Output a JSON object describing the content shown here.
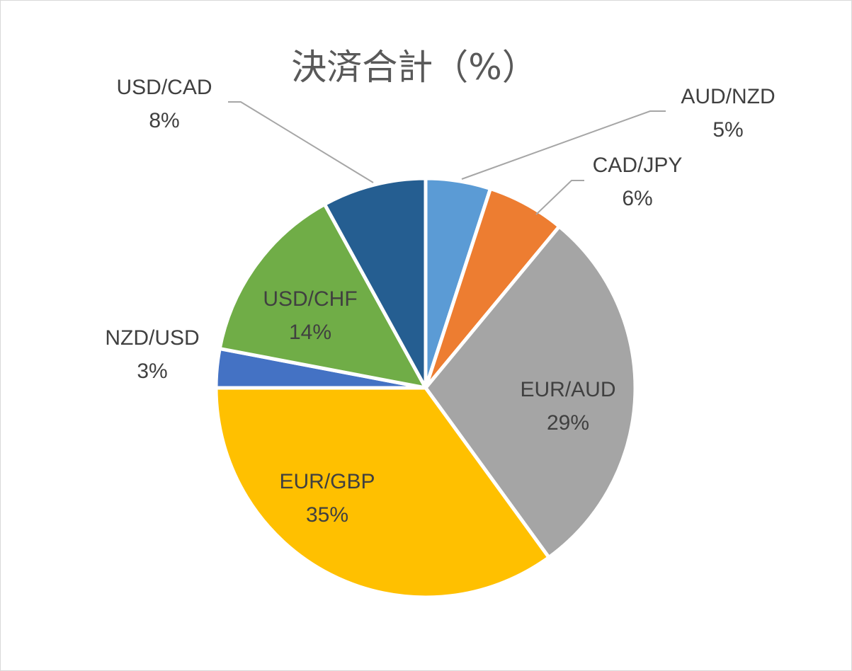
{
  "chart_data": {
    "type": "pie",
    "title": "決済合計（%）",
    "categories": [
      "AUD/NZD",
      "CAD/JPY",
      "EUR/AUD",
      "EUR/GBP",
      "NZD/USD",
      "USD/CHF",
      "USD/CAD"
    ],
    "values": [
      5,
      6,
      29,
      35,
      3,
      14,
      8
    ],
    "value_labels": [
      "5%",
      "6%",
      "29%",
      "35%",
      "3%",
      "14%",
      "8%"
    ],
    "colors": [
      "#5b9bd5",
      "#ed7d31",
      "#a5a5a5",
      "#ffc000",
      "#4472c4",
      "#70ad47",
      "#255e91"
    ],
    "start_angle_deg": 0,
    "direction": "clockwise",
    "legend": "none"
  }
}
